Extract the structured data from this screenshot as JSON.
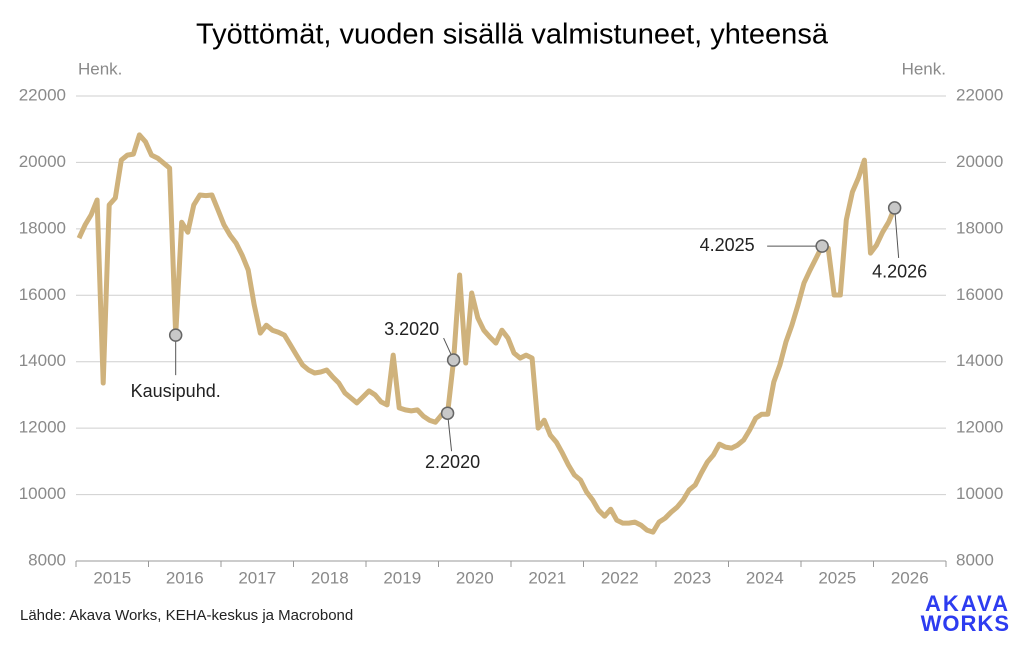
{
  "chart_data": {
    "type": "line",
    "title": "Työttömät, vuoden sisällä valmistuneet, yhteensä",
    "y_label": "Henk.",
    "y2_label": "Henk.",
    "source": "Lähde: Akava Works, KEHA-keskus ja Macrobond",
    "logo": [
      "AKAVA",
      "WORKS"
    ],
    "x": [
      "1.2015",
      "2.2015",
      "3.2015",
      "4.2015",
      "5.2015",
      "6.2015",
      "7.2015",
      "8.2015",
      "9.2015",
      "10.2015",
      "11.2015",
      "12.2015",
      "1.2016",
      "2.2016",
      "3.2016",
      "4.2016",
      "5.2016",
      "6.2016",
      "7.2016",
      "8.2016",
      "9.2016",
      "10.2016",
      "11.2016",
      "12.2016",
      "1.2017",
      "2.2017",
      "3.2017",
      "4.2017",
      "5.2017",
      "6.2017",
      "7.2017",
      "8.2017",
      "9.2017",
      "10.2017",
      "11.2017",
      "12.2017",
      "1.2018",
      "2.2018",
      "3.2018",
      "4.2018",
      "5.2018",
      "6.2018",
      "7.2018",
      "8.2018",
      "9.2018",
      "10.2018",
      "11.2018",
      "12.2018",
      "1.2019",
      "2.2019",
      "3.2019",
      "4.2019",
      "5.2019",
      "6.2019",
      "7.2019",
      "8.2019",
      "9.2019",
      "10.2019",
      "11.2019",
      "12.2019",
      "1.2020",
      "2.2020",
      "3.2020",
      "4.2020",
      "5.2020",
      "6.2020",
      "7.2020",
      "8.2020",
      "9.2020",
      "10.2020",
      "11.2020",
      "12.2020",
      "1.2021",
      "2.2021",
      "3.2021",
      "4.2021",
      "5.2021",
      "6.2021",
      "7.2021",
      "8.2021",
      "9.2021",
      "10.2021",
      "11.2021",
      "12.2021",
      "1.2022",
      "2.2022",
      "3.2022",
      "4.2022",
      "5.2022",
      "6.2022",
      "7.2022",
      "8.2022",
      "9.2022",
      "10.2022",
      "11.2022",
      "12.2022",
      "1.2023",
      "2.2023",
      "3.2023",
      "4.2023",
      "5.2023",
      "6.2023",
      "7.2023",
      "8.2023",
      "9.2023",
      "10.2023",
      "11.2023",
      "12.2023",
      "1.2024",
      "2.2024",
      "3.2024",
      "4.2024",
      "5.2024",
      "6.2024",
      "7.2024",
      "8.2024",
      "9.2024",
      "10.2024",
      "11.2024",
      "12.2024",
      "1.2025",
      "2.2025",
      "3.2025",
      "4.2025",
      "5.2025",
      "6.2025",
      "7.2025",
      "8.2025",
      "9.2025",
      "10.2025",
      "11.2025",
      "12.2025",
      "1.2026",
      "2.2026",
      "3.2026",
      "4.2026"
    ],
    "series": [
      {
        "name": "Työttömät, vuoden sisällä valmistuneet",
        "color": "#cfb27c",
        "values": [
          17720,
          18120,
          18420,
          18870,
          13360,
          18720,
          18930,
          20070,
          20220,
          20250,
          20830,
          20620,
          20220,
          20130,
          19980,
          19830,
          14800,
          18200,
          17900,
          18720,
          19020,
          19000,
          19020,
          18570,
          18120,
          17810,
          17570,
          17210,
          16760,
          15710,
          14860,
          15100,
          14950,
          14890,
          14800,
          14500,
          14200,
          13900,
          13750,
          13660,
          13690,
          13750,
          13540,
          13360,
          13060,
          12910,
          12760,
          12940,
          13120,
          13000,
          12790,
          12700,
          14200,
          12610,
          12550,
          12520,
          12550,
          12360,
          12240,
          12180,
          12400,
          12450,
          14050,
          16610,
          13960,
          16070,
          15320,
          14950,
          14740,
          14560,
          14950,
          14710,
          14260,
          14110,
          14200,
          14110,
          12000,
          12240,
          11790,
          11580,
          11250,
          10890,
          10590,
          10440,
          10080,
          9840,
          9530,
          9350,
          9560,
          9230,
          9140,
          9140,
          9170,
          9080,
          8930,
          8870,
          9170,
          9290,
          9470,
          9620,
          9840,
          10140,
          10290,
          10650,
          10980,
          11190,
          11520,
          11430,
          11400,
          11490,
          11640,
          11940,
          12300,
          12420,
          12420,
          13390,
          13900,
          14590,
          15100,
          15710,
          16370,
          16760,
          17120,
          17480,
          17420,
          16010,
          16010,
          18270,
          19110,
          19530,
          20070,
          17270,
          17510,
          17900,
          18200,
          18630
        ]
      }
    ],
    "annotations": [
      {
        "text": "Kausipuhd.",
        "x": "5.2016"
      },
      {
        "text": "2.2020",
        "x": "2.2020"
      },
      {
        "text": "3.2020",
        "x": "3.2020"
      },
      {
        "text": "4.2025",
        "x": "4.2025"
      },
      {
        "text": "4.2026",
        "x": "4.2026"
      }
    ],
    "xlim": [
      2015,
      2027
    ],
    "xticks": [
      2015,
      2016,
      2017,
      2018,
      2019,
      2020,
      2021,
      2022,
      2023,
      2024,
      2025,
      2026
    ],
    "ylim": [
      8000,
      22000
    ],
    "yticks": [
      8000,
      10000,
      12000,
      14000,
      16000,
      18000,
      20000,
      22000
    ],
    "y2lim": [
      8000,
      22000
    ],
    "y2ticks": [
      8000,
      10000,
      12000,
      14000,
      16000,
      18000,
      20000,
      22000
    ],
    "grid": true
  }
}
